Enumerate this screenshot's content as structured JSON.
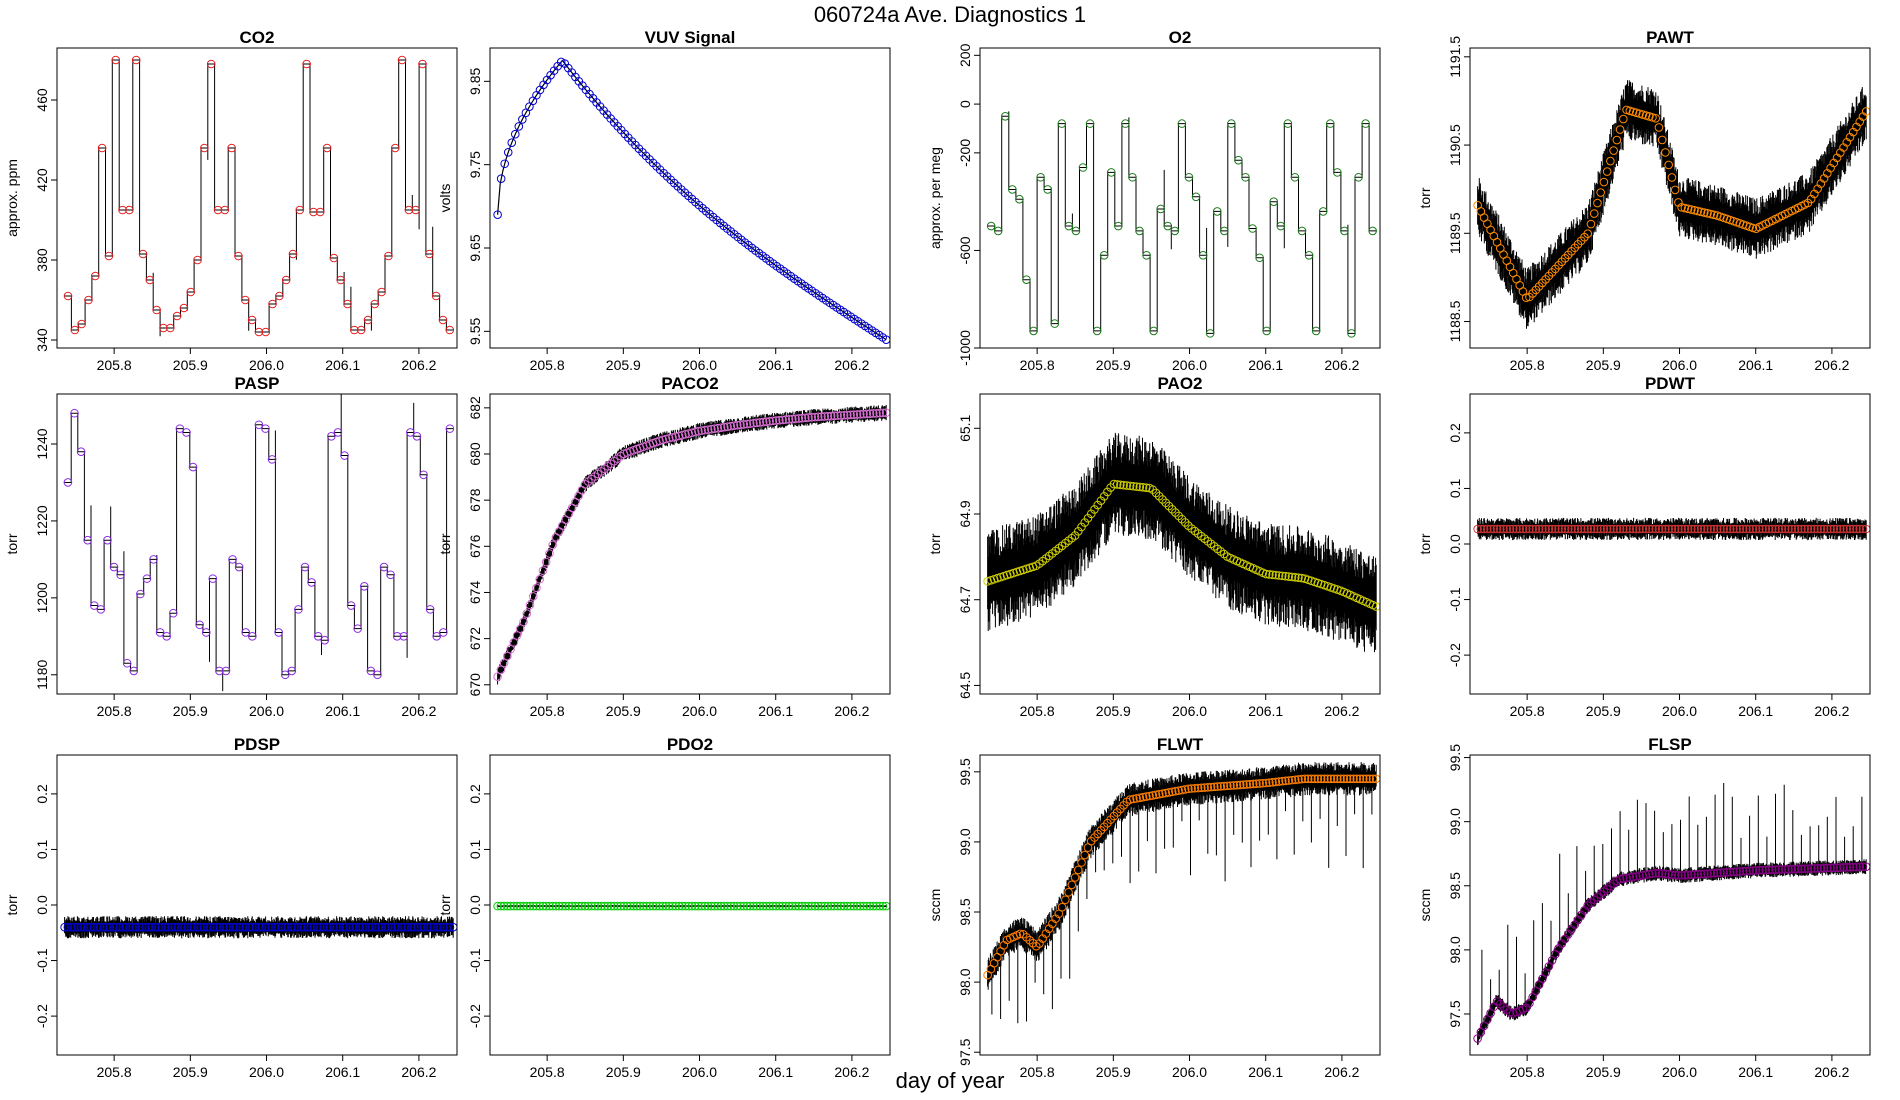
{
  "figure": {
    "title": "060724a   Ave. Diagnostics 1",
    "xlabel": "day of year"
  },
  "chart_data": [
    {
      "type": "line",
      "title": "CO2",
      "ylabel": "approx. ppm",
      "ylim": [
        336,
        486
      ],
      "yticks": [
        "340",
        "380",
        "420",
        "460"
      ],
      "xticks": [
        "205.8",
        "205.9",
        "206.0",
        "206.1",
        "206.2"
      ],
      "xlim": [
        205.725,
        206.25
      ],
      "color": "#e41a1c",
      "pattern": "steps",
      "levels": [
        362,
        345,
        348,
        360,
        372,
        436,
        382,
        480,
        405,
        405,
        480,
        383,
        370,
        355,
        346,
        346,
        352,
        356,
        364,
        380,
        436,
        478,
        405,
        405,
        436,
        382,
        360,
        350,
        344,
        344,
        358,
        362,
        370,
        383,
        405,
        478,
        404,
        404,
        436,
        381,
        370,
        358,
        345,
        345,
        350,
        358,
        364,
        382,
        436,
        480,
        405,
        405,
        478,
        383,
        362,
        350,
        345
      ]
    },
    {
      "type": "line",
      "title": "VUV Signal",
      "ylabel": "volts",
      "ylim": [
        9.53,
        9.89
      ],
      "yticks": [
        "9.55",
        "9.65",
        "9.75",
        "9.85"
      ],
      "xticks": [
        "205.8",
        "205.9",
        "206.0",
        "206.1",
        "206.2"
      ],
      "xlim": [
        205.725,
        206.25
      ],
      "color": "#0000cd",
      "pattern": "peak",
      "start": 9.69,
      "peak": 9.875,
      "peakx": 205.82,
      "end": 9.54
    },
    {
      "type": "line",
      "title": "O2",
      "ylabel": "approx. per meg",
      "ylim": [
        -1000,
        230
      ],
      "yticks": [
        "-1000",
        "-600",
        "-200",
        "0",
        "200"
      ],
      "xticks": [
        "205.8",
        "205.9",
        "206.0",
        "206.1",
        "206.2"
      ],
      "xlim": [
        205.725,
        206.25
      ],
      "color": "#1a7a1a",
      "pattern": "steps",
      "levels": [
        -500,
        -520,
        -50,
        -350,
        -390,
        -720,
        -930,
        -300,
        -350,
        -900,
        -80,
        -500,
        -520,
        -260,
        -80,
        -930,
        -620,
        -280,
        -500,
        -80,
        -300,
        -520,
        -620,
        -930,
        -430,
        -500,
        -520,
        -80,
        -300,
        -380,
        -620,
        -940,
        -440,
        -520,
        -80,
        -230,
        -300,
        -510,
        -630,
        -930,
        -400,
        -500,
        -80,
        -300,
        -520,
        -620,
        -930,
        -440,
        -80,
        -280,
        -520,
        -940,
        -300,
        -80,
        -520
      ]
    },
    {
      "type": "line",
      "title": "PAWT",
      "ylabel": "torr",
      "ylim": [
        1188.2,
        1191.6
      ],
      "yticks": [
        "1188.5",
        "1189.5",
        "1190.5",
        "1191.5"
      ],
      "xticks": [
        "205.8",
        "205.9",
        "206.0",
        "206.1",
        "206.2"
      ],
      "xlim": [
        205.725,
        206.25
      ],
      "color": "#ff8c00",
      "pattern": "wave",
      "points": [
        [
          205.73,
          1189.9
        ],
        [
          205.8,
          1188.75
        ],
        [
          205.88,
          1189.5
        ],
        [
          205.93,
          1190.9
        ],
        [
          205.97,
          1190.8
        ],
        [
          206.0,
          1189.8
        ],
        [
          206.05,
          1189.7
        ],
        [
          206.1,
          1189.55
        ],
        [
          206.17,
          1189.85
        ],
        [
          206.25,
          1190.95
        ]
      ],
      "noise": 0.35
    },
    {
      "type": "line",
      "title": "PASP",
      "ylabel": "torr",
      "ylim": [
        1175,
        1253
      ],
      "yticks": [
        "1180",
        "1200",
        "1220",
        "1240"
      ],
      "xticks": [
        "205.8",
        "205.9",
        "206.0",
        "206.1",
        "206.2"
      ],
      "xlim": [
        205.725,
        206.25
      ],
      "color": "#8a2be2",
      "pattern": "steps",
      "levels": [
        1230,
        1248,
        1238,
        1215,
        1198,
        1197,
        1215,
        1208,
        1206,
        1183,
        1181,
        1201,
        1205,
        1210,
        1191,
        1190,
        1196,
        1244,
        1243,
        1234,
        1193,
        1191,
        1205,
        1181,
        1181,
        1210,
        1208,
        1191,
        1190,
        1245,
        1244,
        1236,
        1191,
        1180,
        1181,
        1197,
        1208,
        1204,
        1190,
        1189,
        1242,
        1243,
        1237,
        1198,
        1192,
        1203,
        1181,
        1180,
        1208,
        1206,
        1190,
        1190,
        1243,
        1242,
        1232,
        1197,
        1190,
        1191,
        1244
      ]
    },
    {
      "type": "line",
      "title": "PACO2",
      "ylabel": "torr",
      "ylim": [
        669.6,
        682.6
      ],
      "yticks": [
        "670",
        "672",
        "674",
        "676",
        "678",
        "680",
        "682"
      ],
      "xticks": [
        "205.8",
        "205.9",
        "206.0",
        "206.1",
        "206.2"
      ],
      "xlim": [
        205.725,
        206.25
      ],
      "color": "#da70d6",
      "pattern": "wave",
      "points": [
        [
          205.73,
          670.0
        ],
        [
          205.77,
          672.8
        ],
        [
          205.81,
          676.3
        ],
        [
          205.85,
          678.7
        ],
        [
          205.9,
          680.0
        ],
        [
          205.95,
          680.6
        ],
        [
          206.0,
          681.0
        ],
        [
          206.05,
          681.25
        ],
        [
          206.1,
          681.45
        ],
        [
          206.15,
          681.6
        ],
        [
          206.25,
          681.8
        ]
      ],
      "noise": 0.35
    },
    {
      "type": "line",
      "title": "PAO2",
      "ylabel": "torr",
      "ylim": [
        64.48,
        65.18
      ],
      "yticks": [
        "64.5",
        "64.7",
        "64.9",
        "65.1"
      ],
      "xticks": [
        "205.8",
        "205.9",
        "206.0",
        "206.1",
        "206.2"
      ],
      "xlim": [
        205.725,
        206.25
      ],
      "color": "#cdcd00",
      "pattern": "wave",
      "points": [
        [
          205.73,
          64.74
        ],
        [
          205.8,
          64.78
        ],
        [
          205.85,
          64.85
        ],
        [
          205.9,
          64.97
        ],
        [
          205.95,
          64.96
        ],
        [
          206.0,
          64.87
        ],
        [
          206.05,
          64.8
        ],
        [
          206.1,
          64.76
        ],
        [
          206.15,
          64.75
        ],
        [
          206.2,
          64.72
        ],
        [
          206.25,
          64.68
        ]
      ],
      "noise": 0.12
    },
    {
      "type": "line",
      "title": "PDWT",
      "ylabel": "torr",
      "ylim": [
        -0.27,
        0.27
      ],
      "yticks": [
        "-0.2",
        "-0.1",
        "0.0",
        "0.1",
        "0.2"
      ],
      "xticks": [
        "205.8",
        "205.9",
        "206.0",
        "206.1",
        "206.2"
      ],
      "xlim": [
        205.725,
        206.25
      ],
      "color": "#cd3333",
      "pattern": "flat",
      "level": 0.027,
      "noise": 0.02
    },
    {
      "type": "line",
      "title": "PDSP",
      "ylabel": "torr",
      "ylim": [
        -0.27,
        0.27
      ],
      "yticks": [
        "-0.2",
        "-0.1",
        "0.0",
        "0.1",
        "0.2"
      ],
      "xticks": [
        "205.8",
        "205.9",
        "206.0",
        "206.1",
        "206.2"
      ],
      "xlim": [
        205.725,
        206.25
      ],
      "color": "#0000cd",
      "pattern": "flat",
      "level": -0.04,
      "noise": 0.02
    },
    {
      "type": "line",
      "title": "PDO2",
      "ylabel": "torr",
      "ylim": [
        -0.27,
        0.27
      ],
      "yticks": [
        "-0.2",
        "-0.1",
        "0.0",
        "0.1",
        "0.2"
      ],
      "xticks": [
        "205.8",
        "205.9",
        "206.0",
        "206.1",
        "206.2"
      ],
      "xlim": [
        205.725,
        206.25
      ],
      "color": "#00cd00",
      "pattern": "flat",
      "level": -0.002,
      "noise": 0.002
    },
    {
      "type": "line",
      "title": "FLWT",
      "ylabel": "sccm",
      "ylim": [
        97.48,
        99.62
      ],
      "yticks": [
        "97.5",
        "98.0",
        "98.5",
        "99.0",
        "99.5"
      ],
      "xticks": [
        "205.8",
        "205.9",
        "206.0",
        "206.1",
        "206.2"
      ],
      "xlim": [
        205.725,
        206.25
      ],
      "color": "#ff7f00",
      "pattern": "wave",
      "points": [
        [
          205.73,
          98.0
        ],
        [
          205.76,
          98.3
        ],
        [
          205.78,
          98.35
        ],
        [
          205.8,
          98.25
        ],
        [
          205.83,
          98.5
        ],
        [
          205.87,
          99.0
        ],
        [
          205.92,
          99.3
        ],
        [
          205.97,
          99.35
        ],
        [
          206.0,
          99.38
        ],
        [
          206.05,
          99.4
        ],
        [
          206.1,
          99.42
        ],
        [
          206.15,
          99.45
        ],
        [
          206.25,
          99.45
        ]
      ],
      "noise": 0.12
    },
    {
      "type": "line",
      "title": "FLSP",
      "ylabel": "sccm",
      "ylim": [
        97.18,
        99.52
      ],
      "yticks": [
        "97.5",
        "98.0",
        "98.5",
        "99.0",
        "99.5"
      ],
      "xticks": [
        "205.8",
        "205.9",
        "206.0",
        "206.1",
        "206.2"
      ],
      "xlim": [
        205.725,
        206.25
      ],
      "color": "#8b008b",
      "pattern": "wave",
      "points": [
        [
          205.73,
          97.25
        ],
        [
          205.76,
          97.6
        ],
        [
          205.78,
          97.5
        ],
        [
          205.8,
          97.55
        ],
        [
          205.84,
          98.0
        ],
        [
          205.88,
          98.35
        ],
        [
          205.92,
          98.55
        ],
        [
          205.97,
          98.6
        ],
        [
          206.0,
          98.58
        ],
        [
          206.1,
          98.62
        ],
        [
          206.25,
          98.65
        ]
      ],
      "noise": 0.06
    }
  ]
}
